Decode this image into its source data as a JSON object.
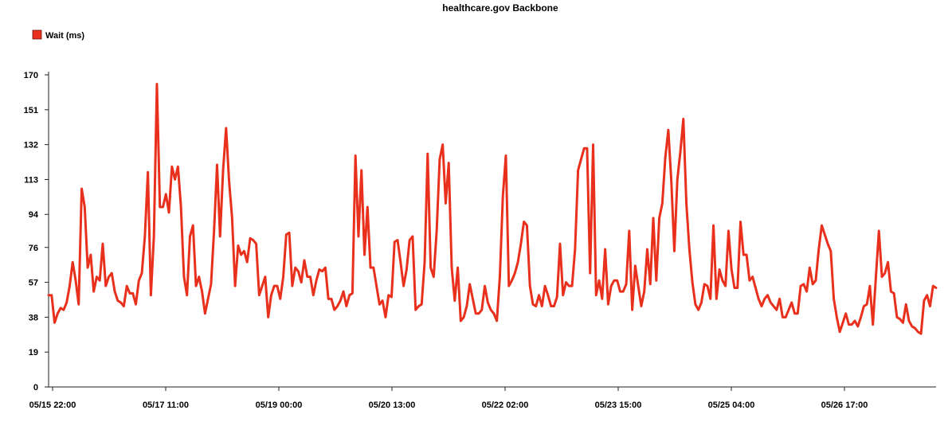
{
  "chart_data": {
    "type": "line",
    "title": "healthcare.gov Backbone",
    "legend": {
      "position": "top-left",
      "entries": [
        "Wait (ms)"
      ]
    },
    "ylim": [
      0,
      170
    ],
    "yticks": [
      "0",
      "19",
      "38",
      "57",
      "76",
      "94",
      "113",
      "132",
      "151",
      "170"
    ],
    "xticks": [
      "05/15 22:00",
      "05/17 11:00",
      "05/19 00:00",
      "05/20 13:00",
      "05/22 02:00",
      "05/23 15:00",
      "05/25 04:00",
      "05/26 17:00"
    ],
    "grid": false,
    "color": "#e8301c",
    "series": [
      {
        "name": "Wait (ms)",
        "values": [
          50,
          50,
          35,
          40,
          43,
          42,
          46,
          55,
          68,
          58,
          45,
          108,
          98,
          65,
          72,
          52,
          60,
          58,
          78,
          55,
          60,
          62,
          52,
          47,
          46,
          44,
          55,
          51,
          51,
          45,
          58,
          62,
          82,
          117,
          50,
          82,
          165,
          98,
          98,
          105,
          95,
          120,
          113,
          120,
          98,
          60,
          50,
          82,
          88,
          55,
          60,
          52,
          40,
          48,
          56,
          85,
          121,
          82,
          118,
          141,
          112,
          92,
          55,
          77,
          72,
          74,
          68,
          81,
          80,
          78,
          50,
          55,
          60,
          38,
          50,
          55,
          55,
          48,
          60,
          83,
          84,
          55,
          65,
          63,
          57,
          69,
          60,
          60,
          50,
          58,
          64,
          63,
          65,
          48,
          48,
          42,
          44,
          47,
          52,
          44,
          50,
          51,
          126,
          82,
          118,
          72,
          98,
          65,
          65,
          55,
          45,
          47,
          38,
          50,
          49,
          79,
          80,
          68,
          55,
          64,
          80,
          82,
          42,
          44,
          45,
          68,
          127,
          65,
          60,
          85,
          124,
          132,
          100,
          122,
          65,
          47,
          65,
          36,
          38,
          44,
          56,
          48,
          40,
          40,
          42,
          55,
          46,
          42,
          40,
          36,
          60,
          104,
          126,
          55,
          58,
          62,
          68,
          78,
          90,
          88,
          55,
          45,
          44,
          50,
          44,
          55,
          50,
          44,
          44,
          49,
          78,
          50,
          57,
          55,
          55,
          75,
          118,
          124,
          130,
          130,
          62,
          132,
          50,
          58,
          48,
          75,
          45,
          55,
          58,
          58,
          52,
          52,
          56,
          85,
          42,
          66,
          55,
          44,
          52,
          75,
          56,
          92,
          58,
          92,
          100,
          125,
          140,
          112,
          74,
          113,
          128,
          146,
          100,
          75,
          57,
          45,
          42,
          46,
          56,
          55,
          48,
          88,
          48,
          64,
          58,
          55,
          85,
          64,
          54,
          54,
          90,
          72,
          72,
          58,
          60,
          54,
          48,
          44,
          48,
          50,
          46,
          44,
          42,
          48,
          38,
          38,
          42,
          46,
          40,
          40,
          55,
          56,
          52,
          65,
          56,
          58,
          75,
          88,
          83,
          78,
          74,
          48,
          38,
          30,
          35,
          40,
          34,
          34,
          36,
          33,
          38,
          44,
          45,
          55,
          34,
          60,
          85,
          60,
          62,
          68,
          52,
          51,
          38,
          37,
          35,
          45,
          36,
          33,
          32,
          30,
          29,
          47,
          50,
          44,
          55,
          54
        ]
      }
    ]
  }
}
